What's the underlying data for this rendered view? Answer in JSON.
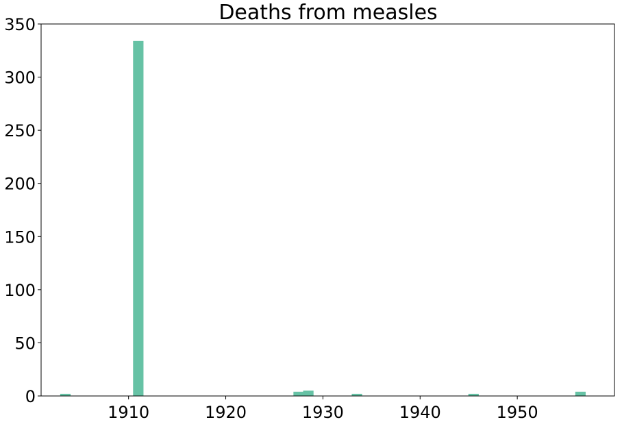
{
  "chart_data": {
    "type": "bar",
    "title": "Deaths from measles",
    "xlabel": "",
    "ylabel": "",
    "x": [
      1903.5,
      1911,
      1927.5,
      1928.5,
      1933.5,
      1945.5,
      1956.5
    ],
    "values": [
      2,
      334,
      4,
      5,
      2,
      2,
      4
    ],
    "bar_width": 1.07,
    "xlim": [
      1901,
      1960
    ],
    "ylim": [
      0,
      350
    ],
    "x_ticks": [
      "1910",
      "1920",
      "1930",
      "1940",
      "1950"
    ],
    "x_tick_values": [
      1910,
      1920,
      1930,
      1940,
      1950
    ],
    "y_ticks": [
      "0",
      "50",
      "100",
      "150",
      "200",
      "250",
      "300",
      "350"
    ],
    "y_tick_values": [
      0,
      50,
      100,
      150,
      200,
      250,
      300,
      350
    ],
    "bar_color": "#66c2a5",
    "grid": false,
    "legend": "none"
  }
}
